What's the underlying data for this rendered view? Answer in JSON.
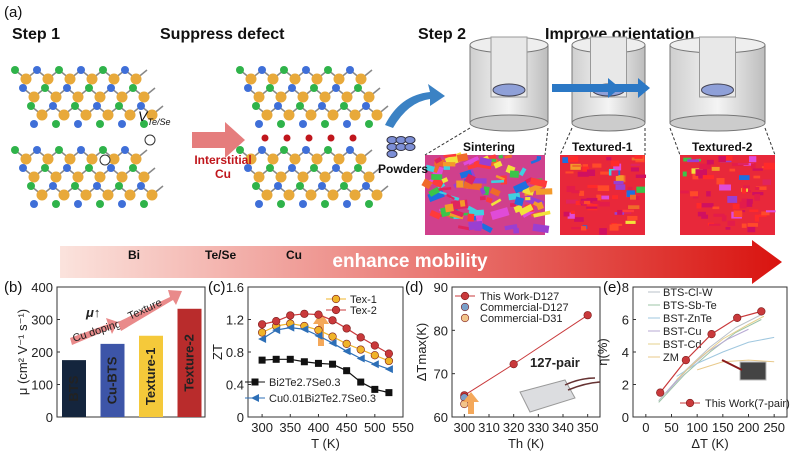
{
  "panel_a": {
    "label": "(a)",
    "step1": "Step 1",
    "step1_title": "Suppress defect",
    "step2": "Step 2",
    "step2_title": "Improve orientation",
    "vacancy_label": "V",
    "vacancy_sub": "Te/Se",
    "interstitial": "Interstitial",
    "cu": "Cu",
    "powders": "Powders",
    "stages": [
      "Sintering",
      "Textured-1",
      "Textured-2"
    ],
    "legend": [
      "Bi",
      "Te/Se",
      "Cu"
    ],
    "colors": {
      "bi": "#e8a93a",
      "te": "#2fb34a",
      "se": "#3f6fd8",
      "cu": "#c0161c"
    },
    "banner": "enhance mobility"
  },
  "chart_data": [
    {
      "panel": "(b)",
      "type": "bar",
      "categories": [
        "BTS",
        "Cu-BTS",
        "Texture-1",
        "Texture-2"
      ],
      "values": [
        175,
        225,
        250,
        333
      ],
      "colors": [
        "#14253d",
        "#3d55a8",
        "#f5c93a",
        "#b92c2c"
      ],
      "ylabel": "μ (cm² V⁻¹ s⁻¹)",
      "ylim": [
        0,
        400
      ],
      "yticks": [
        0,
        100,
        200,
        300,
        400
      ],
      "annotations": [
        "Cu doping",
        "Texture",
        "μ↑"
      ]
    },
    {
      "panel": "(c)",
      "type": "line",
      "xlabel": "T (K)",
      "ylabel": "ZT",
      "xlim": [
        275,
        550
      ],
      "ylim": [
        0,
        1.6
      ],
      "xticks": [
        300,
        350,
        400,
        450,
        500,
        550
      ],
      "yticks": [
        0,
        0.4,
        0.8,
        1.2,
        1.6
      ],
      "x": [
        300,
        325,
        350,
        375,
        400,
        425,
        450,
        475,
        500,
        525
      ],
      "series": [
        {
          "name": "Tex-1",
          "color": "#f0b429",
          "marker": "circle",
          "values": [
            1.04,
            1.12,
            1.15,
            1.12,
            1.07,
            0.99,
            0.9,
            0.83,
            0.76,
            0.69
          ]
        },
        {
          "name": "Tex-2",
          "color": "#c9393b",
          "marker": "circle",
          "values": [
            1.14,
            1.18,
            1.25,
            1.27,
            1.26,
            1.19,
            1.09,
            0.98,
            0.88,
            0.78
          ]
        },
        {
          "name": "Bi2Te2.7Se0.3",
          "color": "#111111",
          "marker": "square",
          "values": [
            0.7,
            0.71,
            0.71,
            0.68,
            0.66,
            0.65,
            0.57,
            0.43,
            0.34,
            0.3
          ]
        },
        {
          "name": "Cu0.01Bi2Te2.7Se0.3",
          "color": "#2d6fb7",
          "marker": "triangle",
          "values": [
            0.96,
            1.07,
            1.1,
            1.08,
            1.0,
            0.91,
            0.81,
            0.72,
            0.65,
            0.59
          ]
        }
      ]
    },
    {
      "panel": "(d)",
      "type": "line",
      "xlabel": "Th (K)",
      "ylabel": "ΔTmax(K)",
      "xlim": [
        295,
        355
      ],
      "ylim": [
        60,
        90
      ],
      "xticks": [
        300,
        310,
        320,
        330,
        340,
        350
      ],
      "yticks": [
        60,
        70,
        80,
        90
      ],
      "annotation": "127-pair",
      "series": [
        {
          "name": "This Work-D127",
          "color": "#c9393b",
          "x": [
            300,
            320,
            350
          ],
          "values": [
            65,
            72.2,
            83.5
          ]
        },
        {
          "name": "Commercial-D127",
          "color": "#7a9fc9",
          "x": [
            300
          ],
          "values": [
            64.5
          ]
        },
        {
          "name": "Commercial-D31",
          "color": "#f2c48a",
          "x": [
            300
          ],
          "values": [
            63
          ]
        }
      ]
    },
    {
      "panel": "(e)",
      "type": "line",
      "xlabel": "ΔT (K)",
      "ylabel": "η(%)",
      "xlim": [
        -25,
        275
      ],
      "ylim": [
        0,
        8
      ],
      "xticks": [
        0,
        50,
        100,
        150,
        200,
        250
      ],
      "yticks": [
        0,
        2,
        4,
        6,
        8
      ],
      "series": [
        {
          "name": "BTS-Cl-W",
          "color": "#b9c0c8",
          "x": [
            25,
            75,
            125,
            175,
            225
          ],
          "values": [
            1.0,
            2.8,
            4.3,
            5.5,
            6.3
          ]
        },
        {
          "name": "BTS-Sb-Te",
          "color": "#9dc4a7",
          "x": [
            25,
            75,
            125,
            175,
            225
          ],
          "values": [
            0.9,
            2.6,
            4.0,
            5.2,
            6.0
          ]
        },
        {
          "name": "BST-ZnTe",
          "color": "#9fc7df",
          "x": [
            60,
            100,
            150,
            200,
            250
          ],
          "values": [
            2.5,
            3.3,
            4.0,
            4.6,
            4.9
          ]
        },
        {
          "name": "BST-Cu",
          "color": "#b7a9d3",
          "x": [
            40,
            80,
            120,
            160,
            200
          ],
          "values": [
            1.5,
            2.9,
            4.0,
            4.8,
            5.4
          ]
        },
        {
          "name": "BST-Cd",
          "color": "#e6d08c",
          "x": [
            60,
            100,
            150,
            200,
            230
          ],
          "values": [
            2.3,
            3.5,
            4.8,
            5.7,
            6.2
          ]
        },
        {
          "name": "ZM",
          "color": "#e8c98a",
          "x": [
            100,
            150,
            200,
            250
          ],
          "values": [
            2.9,
            3.4,
            3.5,
            3.4
          ]
        },
        {
          "name": "This Work(7-pair)",
          "color": "#c9393b",
          "x": [
            28,
            78,
            128,
            178,
            225
          ],
          "values": [
            1.5,
            3.5,
            5.1,
            6.1,
            6.5
          ]
        }
      ]
    }
  ]
}
